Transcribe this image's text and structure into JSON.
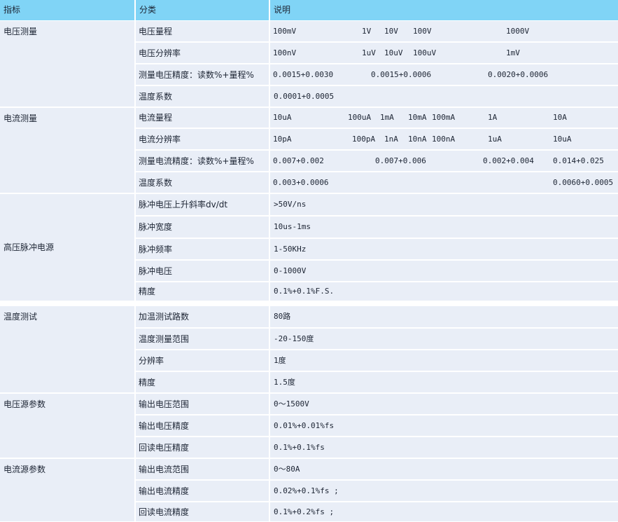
{
  "header": {
    "columns": [
      "指标",
      "分类",
      "说明"
    ]
  },
  "groups": [
    {
      "label": "电压测量",
      "rows": [
        {
          "category": "电压量程",
          "details": [
            "100mV",
            "1V",
            "10V",
            "100V",
            "1000V"
          ]
        },
        {
          "category": "电压分辨率",
          "details": [
            "100nV",
            "1uV",
            "10uV",
            "100uV",
            "1mV"
          ]
        },
        {
          "category": "测量电压精度：读数%+量程%",
          "details": [
            "0.0015+0.0030",
            "0.0015+0.0006",
            "0.0020+0.0006"
          ]
        },
        {
          "category": "温度系数",
          "details": [
            "0.0001+0.0005"
          ]
        }
      ]
    },
    {
      "label": "电流测量",
      "rows": [
        {
          "category": "电流量程",
          "details": [
            "10uA",
            "100uA",
            "1mA",
            "10mA",
            "100mA",
            "1A",
            "10A"
          ]
        },
        {
          "category": "电流分辨率",
          "details": [
            "10pA",
            "100pA",
            "1nA",
            "10nA",
            "100nA",
            "1uA",
            "10uA"
          ]
        },
        {
          "category": "测量电流精度：读数%+量程%",
          "details": [
            "0.007+0.002",
            "0.007+0.006",
            "0.002+0.004",
            "0.014+0.025"
          ]
        },
        {
          "category": "温度系数",
          "details": [
            "0.003+0.0006",
            "0.0060+0.0005"
          ]
        }
      ]
    },
    {
      "label": "高压脉冲电源",
      "rows": [
        {
          "category": "脉冲电压上升斜率dv/dt",
          "details": [
            ">50V/ns"
          ]
        },
        {
          "category": "脉冲宽度",
          "details": [
            "10us-1ms"
          ]
        },
        {
          "category": "脉冲频率",
          "details": [
            "1-50KHz"
          ]
        },
        {
          "category": "脉冲电压",
          "details": [
            "0-1000V"
          ]
        },
        {
          "category": "精度",
          "details": [
            "0.1%+0.1%F.S."
          ]
        }
      ]
    },
    {
      "label": "温度测试",
      "rows": [
        {
          "category": "加温测试路数",
          "details": [
            "80路"
          ]
        },
        {
          "category": "温度测量范围",
          "details": [
            "-20-150度"
          ]
        },
        {
          "category": "分辨率",
          "details": [
            "1度"
          ]
        },
        {
          "category": "精度",
          "details": [
            "1.5度"
          ]
        }
      ]
    },
    {
      "label": "电压源参数",
      "rows": [
        {
          "category": "输出电压范围",
          "details": [
            "0～1500V"
          ]
        },
        {
          "category": "输出电压精度",
          "details": [
            "0.01%+0.01%fs"
          ]
        },
        {
          "category": "回读电压精度",
          "details": [
            "0.1%+0.1%fs"
          ]
        }
      ]
    },
    {
      "label": "电流源参数",
      "rows": [
        {
          "category": "输出电流范围",
          "details": [
            "0～80A"
          ]
        },
        {
          "category": "输出电流精度",
          "details": [
            "0.02%+0.1%fs ;"
          ]
        },
        {
          "category": "回读电流精度",
          "details": [
            "0.1%+0.2%fs ;"
          ]
        }
      ]
    }
  ]
}
